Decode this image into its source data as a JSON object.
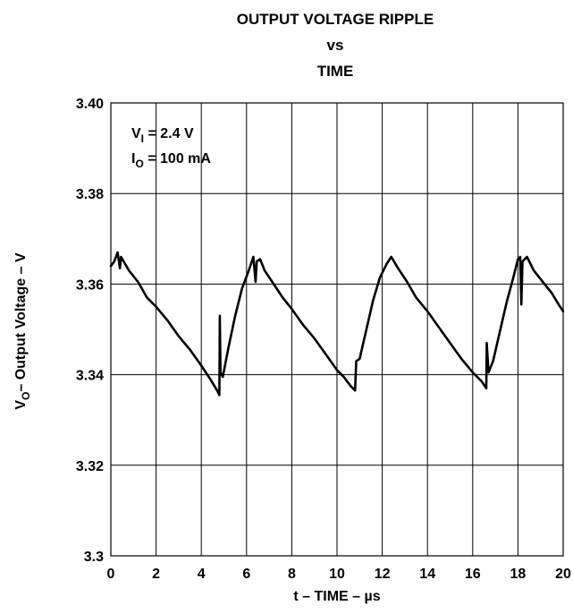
{
  "chart_data": {
    "type": "line",
    "title_lines": [
      "OUTPUT VOLTAGE RIPPLE",
      "vs",
      "TIME"
    ],
    "xlabel": "t – TIME – µs",
    "ylabel_prefix": "V",
    "ylabel_sub": "O",
    "ylabel_rest": "– Output Voltage – V",
    "annotation": [
      {
        "main": "V",
        "sub": "I",
        "rest": " = 2.4 V"
      },
      {
        "main": "I",
        "sub": "O",
        "rest": " = 100 mA"
      }
    ],
    "xlim": [
      0,
      20
    ],
    "ylim": [
      3.3,
      3.4
    ],
    "x_ticks": [
      0,
      2,
      4,
      6,
      8,
      10,
      12,
      14,
      16,
      18,
      20
    ],
    "y_ticks": [
      3.3,
      3.32,
      3.34,
      3.36,
      3.38,
      3.4
    ],
    "x_tick_labels": [
      "0",
      "2",
      "4",
      "6",
      "8",
      "10",
      "12",
      "14",
      "16",
      "18",
      "20"
    ],
    "y_tick_labels": [
      "3.3",
      "3.32",
      "3.34",
      "3.36",
      "3.38",
      "3.40"
    ],
    "grid": true,
    "series": [
      {
        "points": [
          [
            0.0,
            3.364
          ],
          [
            0.15,
            3.365
          ],
          [
            0.3,
            3.367
          ],
          [
            0.4,
            3.3635
          ],
          [
            0.45,
            3.366
          ],
          [
            0.8,
            3.363
          ],
          [
            1.2,
            3.3605
          ],
          [
            1.6,
            3.357
          ],
          [
            2.0,
            3.355
          ],
          [
            2.5,
            3.352
          ],
          [
            3.0,
            3.3485
          ],
          [
            3.5,
            3.3455
          ],
          [
            4.0,
            3.342
          ],
          [
            4.4,
            3.339
          ],
          [
            4.7,
            3.3365
          ],
          [
            4.8,
            3.3355
          ],
          [
            4.82,
            3.353
          ],
          [
            4.85,
            3.3405
          ],
          [
            4.95,
            3.3395
          ],
          [
            5.2,
            3.346
          ],
          [
            5.5,
            3.353
          ],
          [
            5.8,
            3.359
          ],
          [
            6.1,
            3.363
          ],
          [
            6.3,
            3.366
          ],
          [
            6.4,
            3.3605
          ],
          [
            6.45,
            3.365
          ],
          [
            6.6,
            3.3655
          ],
          [
            6.8,
            3.363
          ],
          [
            7.2,
            3.36
          ],
          [
            7.6,
            3.357
          ],
          [
            8.0,
            3.3545
          ],
          [
            8.5,
            3.351
          ],
          [
            9.0,
            3.348
          ],
          [
            9.5,
            3.3445
          ],
          [
            10.0,
            3.341
          ],
          [
            10.3,
            3.3395
          ],
          [
            10.6,
            3.3375
          ],
          [
            10.8,
            3.3365
          ],
          [
            10.85,
            3.343
          ],
          [
            11.0,
            3.3435
          ],
          [
            11.3,
            3.35
          ],
          [
            11.6,
            3.3565
          ],
          [
            11.9,
            3.3615
          ],
          [
            12.2,
            3.3645
          ],
          [
            12.4,
            3.366
          ],
          [
            12.7,
            3.3635
          ],
          [
            13.1,
            3.3605
          ],
          [
            13.5,
            3.357
          ],
          [
            14.0,
            3.354
          ],
          [
            14.5,
            3.3505
          ],
          [
            15.0,
            3.347
          ],
          [
            15.5,
            3.3435
          ],
          [
            16.0,
            3.3405
          ],
          [
            16.4,
            3.3385
          ],
          [
            16.6,
            3.337
          ],
          [
            16.62,
            3.347
          ],
          [
            16.7,
            3.3405
          ],
          [
            16.9,
            3.343
          ],
          [
            17.2,
            3.3495
          ],
          [
            17.5,
            3.356
          ],
          [
            17.8,
            3.3615
          ],
          [
            18.0,
            3.3655
          ],
          [
            18.1,
            3.366
          ],
          [
            18.15,
            3.3555
          ],
          [
            18.2,
            3.365
          ],
          [
            18.4,
            3.366
          ],
          [
            18.7,
            3.363
          ],
          [
            19.1,
            3.3605
          ],
          [
            19.5,
            3.358
          ],
          [
            19.8,
            3.3555
          ],
          [
            20.0,
            3.354
          ]
        ]
      }
    ]
  }
}
